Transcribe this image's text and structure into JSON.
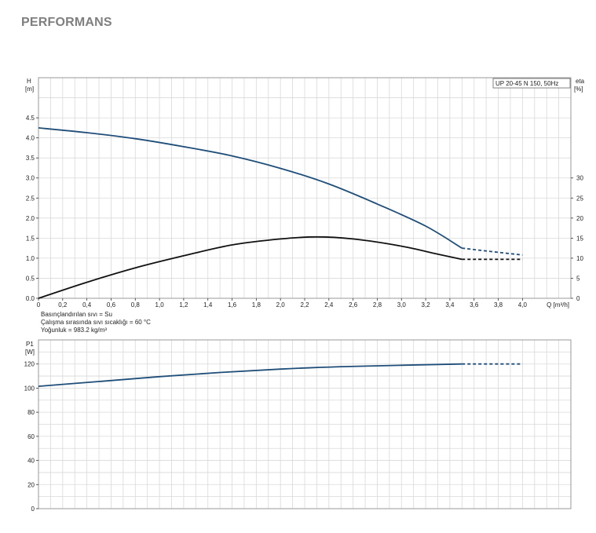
{
  "page_title": "PERFORMANS",
  "colors": {
    "head_curve": "#1f4e79",
    "eff_curve": "#111111",
    "power_curve": "#1f4e79",
    "grid": "#d9d9d9",
    "frame": "#999999"
  },
  "chart_data": [
    {
      "type": "line",
      "legend_box": "UP 20-45 N 150, 50Hz",
      "legend_position": "top-right",
      "xlabel": "Q [m³/h]",
      "ylabel_left": "H\n[m]",
      "ylabel_right": "eta\n[%]",
      "xlim": [
        0,
        4.4
      ],
      "ylim_left": [
        0,
        5.5
      ],
      "ylim_right": [
        0,
        55
      ],
      "x_ticks": [
        "0",
        "0,2",
        "0,4",
        "0,6",
        "0,8",
        "1,0",
        "1,2",
        "1,4",
        "1,6",
        "1,8",
        "2,0",
        "2,2",
        "2,4",
        "2,6",
        "2,8",
        "3,0",
        "3,2",
        "3,4",
        "3,6",
        "3,8",
        "4,0"
      ],
      "y_left_ticks": [
        "0.0",
        "0.5",
        "1.0",
        "1.5",
        "2.0",
        "2.5",
        "3.0",
        "3.5",
        "4.0",
        "4.5"
      ],
      "y_right_ticks": [
        "0",
        "5",
        "10",
        "15",
        "20",
        "25",
        "30"
      ],
      "grid": true,
      "series": [
        {
          "name": "",
          "axis": "left",
          "x": [
            0.0,
            0.4,
            0.8,
            1.2,
            1.6,
            2.0,
            2.4,
            2.8,
            3.2,
            3.5
          ],
          "values": [
            4.25,
            4.13,
            3.98,
            3.78,
            3.55,
            3.24,
            2.85,
            2.35,
            1.8,
            1.25
          ],
          "extension_x": [
            3.5,
            3.7,
            4.0
          ],
          "extension_values": [
            1.25,
            1.18,
            1.08
          ]
        },
        {
          "name": "",
          "axis": "right",
          "x": [
            0.0,
            0.4,
            0.8,
            1.2,
            1.6,
            2.0,
            2.3,
            2.6,
            3.0,
            3.3,
            3.5
          ],
          "values": [
            0.0,
            4.0,
            7.6,
            10.6,
            13.3,
            14.8,
            15.3,
            14.8,
            13.0,
            11.0,
            9.7
          ],
          "extension_x": [
            3.5,
            4.0
          ],
          "extension_values": [
            9.7,
            9.7
          ]
        }
      ],
      "notes": [
        "Basınçlandırılan sıvı = Su",
        "Çalışma sırasında sıvı sıcaklığı = 60 °C",
        "Yoğunluk = 983.2 kg/m³"
      ]
    },
    {
      "type": "line",
      "ylabel_left": "P1\n[W]",
      "xlim": [
        0,
        4.4
      ],
      "ylim_left": [
        0,
        140
      ],
      "y_left_ticks": [
        "0",
        "20",
        "40",
        "60",
        "80",
        "100",
        "120"
      ],
      "grid": true,
      "series": [
        {
          "name": "",
          "axis": "left",
          "x": [
            0.0,
            0.5,
            1.0,
            1.5,
            2.0,
            2.5,
            3.0,
            3.5
          ],
          "values": [
            101.5,
            105.5,
            109.5,
            113.0,
            115.8,
            117.8,
            119.0,
            120.0
          ],
          "extension_x": [
            3.5,
            4.0
          ],
          "extension_values": [
            120.0,
            120.0
          ]
        }
      ]
    }
  ]
}
